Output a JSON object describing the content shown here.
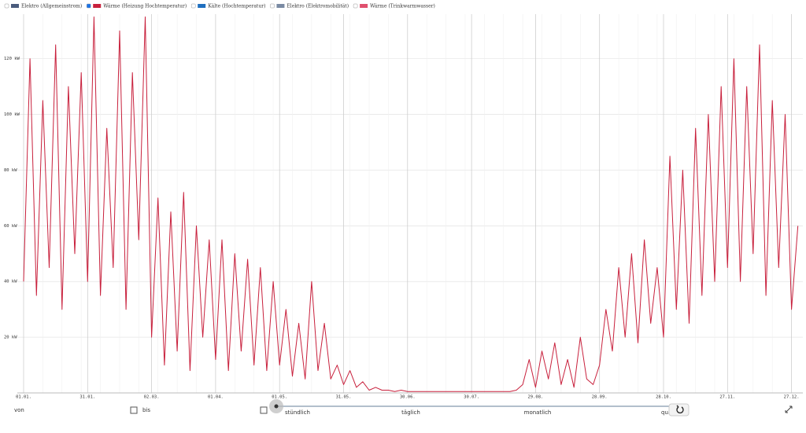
{
  "chart_data": {
    "type": "line",
    "series": [
      {
        "name": "Elektro (Allgemeinstrom)",
        "color": "#4a5b7c",
        "visible": false
      },
      {
        "name": "Wärme (Heizung Hochtemperatur)",
        "color": "#c8203c",
        "visible": true,
        "values": [
          40,
          120,
          35,
          105,
          45,
          125,
          30,
          110,
          50,
          115,
          40,
          135,
          35,
          95,
          45,
          130,
          30,
          115,
          55,
          135,
          20,
          70,
          10,
          65,
          15,
          72,
          8,
          60,
          20,
          55,
          12,
          55,
          8,
          50,
          15,
          48,
          10,
          45,
          8,
          40,
          10,
          30,
          6,
          25,
          5,
          40,
          8,
          25,
          5,
          10,
          3,
          8,
          2,
          4,
          1,
          2,
          1,
          1,
          0.5,
          1,
          0.5,
          0.5,
          0.5,
          0.5,
          0.5,
          0.5,
          0.5,
          0.5,
          0.5,
          0.5,
          0.5,
          0.5,
          0.5,
          0.5,
          0.5,
          0.5,
          0.5,
          1,
          3,
          12,
          2,
          15,
          5,
          18,
          3,
          12,
          2,
          20,
          5,
          3,
          10,
          30,
          15,
          45,
          20,
          50,
          18,
          55,
          25,
          45,
          20,
          85,
          30,
          80,
          25,
          95,
          35,
          100,
          40,
          110,
          45,
          120,
          40,
          110,
          50,
          125,
          35,
          105,
          45,
          100,
          30,
          60
        ]
      },
      {
        "name": "Kälte (Hochtemperatur)",
        "color": "#1f6fbf",
        "visible": false
      },
      {
        "name": "Elektro (Elektromobilität)",
        "color": "#7a8aa3",
        "visible": false
      },
      {
        "name": "Wärme (Trinkwarmwasser)",
        "color": "#e0506e",
        "visible": false
      }
    ],
    "categories": [
      "01.01.",
      null,
      null,
      null,
      null,
      null,
      null,
      null,
      null,
      null,
      "31.01.",
      null,
      null,
      null,
      null,
      null,
      null,
      null,
      null,
      null,
      "02.03.",
      null,
      null,
      null,
      null,
      null,
      null,
      null,
      null,
      null,
      "01.04.",
      null,
      null,
      null,
      null,
      null,
      null,
      null,
      null,
      null,
      "01.05.",
      null,
      null,
      null,
      null,
      null,
      null,
      null,
      null,
      null,
      "31.05.",
      null,
      null,
      null,
      null,
      null,
      null,
      null,
      null,
      null,
      "30.06.",
      null,
      null,
      null,
      null,
      null,
      null,
      null,
      null,
      null,
      "30.07.",
      null,
      null,
      null,
      null,
      null,
      null,
      null,
      null,
      null,
      "29.08.",
      null,
      null,
      null,
      null,
      null,
      null,
      null,
      null,
      null,
      "28.09.",
      null,
      null,
      null,
      null,
      null,
      null,
      null,
      null,
      null,
      "28.10.",
      null,
      null,
      null,
      null,
      null,
      null,
      null,
      null,
      null,
      "27.11.",
      null,
      null,
      null,
      null,
      null,
      null,
      null,
      null,
      null,
      "27.12.",
      null
    ],
    "ylim": [
      0,
      136
    ],
    "yticks": [
      {
        "value": 20,
        "label": "20 kW"
      },
      {
        "value": 40,
        "label": "40 kW"
      },
      {
        "value": 60,
        "label": "60 kW"
      },
      {
        "value": 80,
        "label": "80 kW"
      },
      {
        "value": 100,
        "label": "100 kW"
      },
      {
        "value": 120,
        "label": "120 kW"
      }
    ],
    "grid": true
  },
  "controls": {
    "from_label": "von",
    "to_label": "bis",
    "resolution": [
      "stündlich",
      "täglich",
      "monatlich",
      "quartal"
    ]
  }
}
